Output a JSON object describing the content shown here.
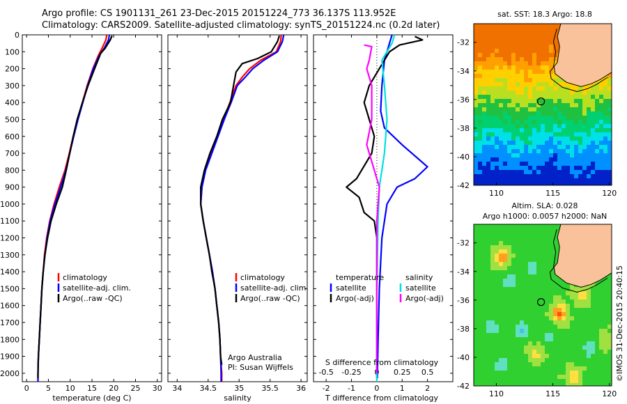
{
  "header": {
    "line1": "Argo profile: CS 1901131_261 23-Dec-2015 20151224_773 36.137S 113.952E",
    "line2": "Climatology: CARS2009. Satellite-adjusted climatology: synTS_20151224.nc (0.2d later)"
  },
  "watermark": "©IMOS 31-Dec-2015 20:40:15",
  "colors": {
    "climatology": "#ff0000",
    "satellite": "#0000ff",
    "argo": "#000000",
    "sal_satellite": "#00e0e0",
    "sal_argo": "#ff00ff",
    "land": "#f9c29a"
  },
  "chart_data": [
    {
      "type": "line",
      "id": "temperature",
      "xlabel": "temperature (deg C)",
      "ylabel": "",
      "xlim": [
        -1,
        31
      ],
      "ylim": [
        2050,
        0
      ],
      "xticks": [
        0,
        5,
        10,
        15,
        20,
        25,
        30
      ],
      "yticks": [
        0,
        100,
        200,
        300,
        400,
        500,
        600,
        700,
        800,
        900,
        1000,
        1100,
        1200,
        1300,
        1400,
        1500,
        1600,
        1700,
        1800,
        1900,
        2000
      ],
      "legend": [
        "climatology",
        "satellite-adj. clim.",
        "Argo(..raw -QC)"
      ],
      "series": [
        {
          "name": "climatology",
          "color": "#ff0000",
          "points": [
            [
              18.4,
              0
            ],
            [
              18.2,
              30
            ],
            [
              17.3,
              80
            ],
            [
              16.5,
              120
            ],
            [
              15.2,
              200
            ],
            [
              13.9,
              300
            ],
            [
              12.8,
              400
            ],
            [
              11.7,
              500
            ],
            [
              10.7,
              600
            ],
            [
              9.8,
              700
            ],
            [
              8.8,
              800
            ],
            [
              7.5,
              900
            ],
            [
              6.3,
              1000
            ],
            [
              5.3,
              1100
            ],
            [
              4.6,
              1200
            ],
            [
              4.1,
              1300
            ],
            [
              3.8,
              1400
            ],
            [
              3.5,
              1500
            ],
            [
              3.3,
              1600
            ],
            [
              3.1,
              1700
            ],
            [
              2.9,
              1800
            ],
            [
              2.7,
              1900
            ],
            [
              2.6,
              2000
            ],
            [
              2.6,
              2050
            ]
          ]
        },
        {
          "name": "satellite-adj. clim.",
          "color": "#0000ff",
          "points": [
            [
              19.0,
              0
            ],
            [
              18.8,
              30
            ],
            [
              17.8,
              80
            ],
            [
              16.7,
              120
            ],
            [
              15.3,
              200
            ],
            [
              14.0,
              300
            ],
            [
              12.9,
              400
            ],
            [
              11.8,
              500
            ],
            [
              10.8,
              600
            ],
            [
              9.9,
              700
            ],
            [
              9.0,
              800
            ],
            [
              7.8,
              900
            ],
            [
              6.5,
              1000
            ],
            [
              5.4,
              1100
            ],
            [
              4.7,
              1200
            ],
            [
              4.2,
              1300
            ],
            [
              3.8,
              1400
            ],
            [
              3.5,
              1500
            ],
            [
              3.3,
              1600
            ],
            [
              3.1,
              1700
            ],
            [
              2.9,
              1800
            ],
            [
              2.7,
              1900
            ],
            [
              2.6,
              2000
            ],
            [
              2.6,
              2050
            ]
          ]
        },
        {
          "name": "Argo(..raw -QC)",
          "color": "#000000",
          "points": [
            [
              19.6,
              5
            ],
            [
              19.2,
              30
            ],
            [
              18.0,
              80
            ],
            [
              17.0,
              110
            ],
            [
              15.6,
              200
            ],
            [
              14.1,
              300
            ],
            [
              12.8,
              400
            ],
            [
              11.6,
              500
            ],
            [
              10.7,
              600
            ],
            [
              9.9,
              700
            ],
            [
              9.1,
              800
            ],
            [
              8.2,
              900
            ],
            [
              6.8,
              1000
            ],
            [
              5.6,
              1100
            ],
            [
              4.8,
              1200
            ],
            [
              4.2,
              1300
            ],
            [
              3.8,
              1400
            ],
            [
              3.5,
              1500
            ],
            [
              3.3,
              1600
            ],
            [
              3.1,
              1700
            ],
            [
              2.9,
              1800
            ],
            [
              2.7,
              1900
            ],
            [
              2.6,
              2000
            ],
            [
              2.6,
              2030
            ]
          ]
        }
      ]
    },
    {
      "type": "line",
      "id": "salinity",
      "xlabel": "salinity",
      "ylabel": "",
      "xlim": [
        33.85,
        36.1
      ],
      "ylim": [
        2050,
        0
      ],
      "xticks": [
        34,
        34.5,
        35,
        35.5,
        36
      ],
      "legend": [
        "climatology",
        "satellite-adj. clim.",
        "Argo(..raw -QC)"
      ],
      "annotation": [
        "Argo Australia",
        "PI: Susan Wijffels"
      ],
      "series": [
        {
          "name": "climatology",
          "color": "#ff0000",
          "points": [
            [
              35.68,
              0
            ],
            [
              35.67,
              40
            ],
            [
              35.6,
              100
            ],
            [
              35.35,
              150
            ],
            [
              35.17,
              200
            ],
            [
              35.05,
              250
            ],
            [
              34.95,
              300
            ],
            [
              34.85,
              400
            ],
            [
              34.75,
              500
            ],
            [
              34.65,
              600
            ],
            [
              34.55,
              700
            ],
            [
              34.45,
              800
            ],
            [
              34.4,
              900
            ],
            [
              34.38,
              1000
            ],
            [
              34.42,
              1100
            ],
            [
              34.47,
              1200
            ],
            [
              34.52,
              1300
            ],
            [
              34.57,
              1400
            ],
            [
              34.61,
              1500
            ],
            [
              34.64,
              1600
            ],
            [
              34.67,
              1700
            ],
            [
              34.69,
              1800
            ],
            [
              34.7,
              1900
            ],
            [
              34.72,
              2000
            ],
            [
              34.72,
              2050
            ]
          ]
        },
        {
          "name": "satellite-adj. clim.",
          "color": "#0000ff",
          "points": [
            [
              35.72,
              0
            ],
            [
              35.7,
              40
            ],
            [
              35.62,
              100
            ],
            [
              35.4,
              150
            ],
            [
              35.22,
              200
            ],
            [
              35.1,
              250
            ],
            [
              34.97,
              300
            ],
            [
              34.87,
              400
            ],
            [
              34.76,
              500
            ],
            [
              34.66,
              600
            ],
            [
              34.56,
              700
            ],
            [
              34.46,
              800
            ],
            [
              34.4,
              900
            ],
            [
              34.38,
              1000
            ],
            [
              34.42,
              1100
            ],
            [
              34.47,
              1200
            ],
            [
              34.52,
              1300
            ],
            [
              34.57,
              1400
            ],
            [
              34.61,
              1500
            ],
            [
              34.64,
              1600
            ],
            [
              34.67,
              1700
            ],
            [
              34.69,
              1800
            ],
            [
              34.7,
              1900
            ],
            [
              34.71,
              2000
            ],
            [
              34.71,
              2050
            ]
          ]
        },
        {
          "name": "Argo(..raw -QC)",
          "color": "#000000",
          "points": [
            [
              35.65,
              5
            ],
            [
              35.62,
              40
            ],
            [
              35.52,
              100
            ],
            [
              35.3,
              140
            ],
            [
              35.05,
              170
            ],
            [
              34.95,
              220
            ],
            [
              34.92,
              280
            ],
            [
              34.86,
              400
            ],
            [
              34.73,
              500
            ],
            [
              34.64,
              600
            ],
            [
              34.53,
              700
            ],
            [
              34.44,
              800
            ],
            [
              34.38,
              900
            ],
            [
              34.38,
              1000
            ],
            [
              34.42,
              1100
            ],
            [
              34.47,
              1200
            ],
            [
              34.52,
              1300
            ],
            [
              34.56,
              1400
            ],
            [
              34.61,
              1500
            ],
            [
              34.64,
              1600
            ],
            [
              34.67,
              1700
            ],
            [
              34.69,
              1800
            ],
            [
              34.7,
              1900
            ],
            [
              34.72,
              1950
            ]
          ]
        }
      ]
    },
    {
      "type": "line",
      "id": "difference",
      "xlabel": "T difference from climatology",
      "xlabel_top": "S difference from climatology",
      "xlim": [
        -2.5,
        3
      ],
      "ylim": [
        2050,
        0
      ],
      "xticks": [
        -2,
        -1,
        0,
        1,
        2
      ],
      "xticks_s": [
        "-0.5",
        "-0.25",
        "0",
        "0.25",
        "0.5"
      ],
      "legend_left": [
        "temperature",
        "satellite",
        "Argo(-adj)"
      ],
      "legend_right": [
        "salinity",
        "satellite",
        "Argo(-adj)"
      ],
      "series": [
        {
          "name": "temperature satellite",
          "color": "#0000ff",
          "points": [
            [
              0.6,
              0
            ],
            [
              0.5,
              50
            ],
            [
              0.3,
              150
            ],
            [
              0.2,
              300
            ],
            [
              0.15,
              450
            ],
            [
              0.3,
              550
            ],
            [
              1.0,
              650
            ],
            [
              2.0,
              780
            ],
            [
              1.5,
              850
            ],
            [
              0.8,
              900
            ],
            [
              0.4,
              1000
            ],
            [
              0.2,
              1200
            ],
            [
              0.1,
              1500
            ],
            [
              0.05,
              1800
            ],
            [
              0.02,
              2030
            ]
          ]
        },
        {
          "name": "temperature Argo(-adj)",
          "color": "#000000",
          "points": [
            [
              1.5,
              10
            ],
            [
              1.8,
              30
            ],
            [
              0.9,
              60
            ],
            [
              0.5,
              100
            ],
            [
              0.1,
              200
            ],
            [
              -0.3,
              300
            ],
            [
              -0.5,
              400
            ],
            [
              -0.3,
              500
            ],
            [
              -0.1,
              600
            ],
            [
              -0.2,
              700
            ],
            [
              -0.8,
              850
            ],
            [
              -1.2,
              900
            ],
            [
              -0.7,
              960
            ],
            [
              -0.5,
              1050
            ],
            [
              -0.1,
              1100
            ],
            [
              0.0,
              1200
            ],
            [
              0.0,
              1500
            ],
            [
              0.0,
              1800
            ],
            [
              0.0,
              2030
            ]
          ]
        },
        {
          "name": "salinity satellite",
          "color": "#00e0e0",
          "points": [
            [
              0.7,
              0
            ],
            [
              0.6,
              50
            ],
            [
              0.2,
              150
            ],
            [
              0.3,
              300
            ],
            [
              0.4,
              500
            ],
            [
              0.3,
              700
            ],
            [
              0.1,
              900
            ],
            [
              0.05,
              1100
            ],
            [
              0.0,
              1500
            ],
            [
              0.0,
              1800
            ],
            [
              0.0,
              2050
            ]
          ]
        },
        {
          "name": "salinity Argo(-adj)",
          "color": "#ff00ff",
          "points": [
            [
              -0.5,
              60
            ],
            [
              -0.2,
              70
            ],
            [
              -0.3,
              150
            ],
            [
              -0.4,
              200
            ],
            [
              -0.2,
              300
            ],
            [
              -0.2,
              500
            ],
            [
              -0.4,
              650
            ],
            [
              -0.1,
              800
            ],
            [
              0.1,
              900
            ],
            [
              0.0,
              1100
            ],
            [
              0.0,
              1500
            ],
            [
              0.0,
              1800
            ],
            [
              0.0,
              2000
            ]
          ]
        }
      ]
    },
    {
      "type": "heatmap",
      "id": "sst-map",
      "title": "sat. SST: 18.3 Argo: 18.8",
      "xlim": [
        108,
        120.2
      ],
      "ylim": [
        -42,
        -30.7
      ],
      "xticks": [
        110,
        115,
        120
      ],
      "yticks": [
        -32,
        -34,
        -36,
        -38,
        -40,
        -42
      ],
      "argo_position": [
        113.952,
        -36.137
      ]
    },
    {
      "type": "heatmap",
      "id": "sla-map",
      "title_line1": "Altim. SLA: 0.028",
      "title_line2": "Argo h1000: 0.0057 h2000: NaN",
      "xlim": [
        108,
        120.2
      ],
      "ylim": [
        -42,
        -30.7
      ],
      "xticks": [
        110,
        115,
        120
      ],
      "yticks": [
        -32,
        -34,
        -36,
        -38,
        -40,
        -42
      ],
      "argo_position": [
        113.952,
        -36.137
      ]
    }
  ]
}
